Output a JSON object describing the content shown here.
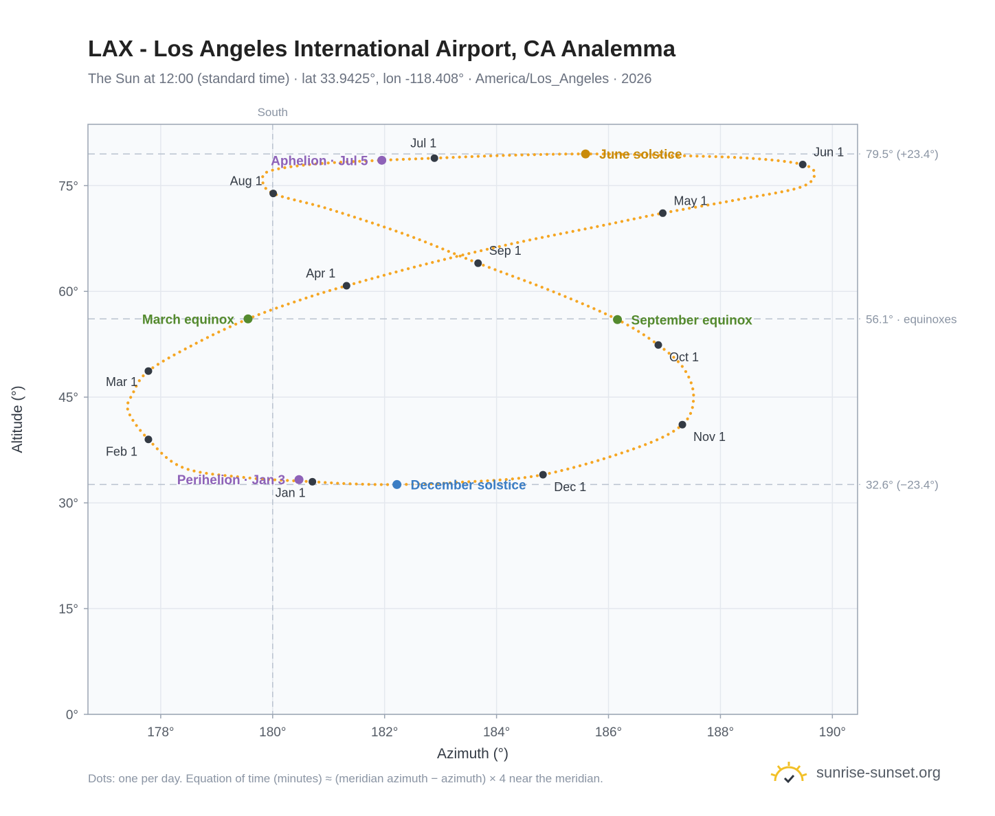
{
  "header": {
    "title": "LAX - Los Angeles International Airport, CA Analemma",
    "subtitle": "The Sun at 12:00 (standard time) · lat 33.9425°, lon -118.408° · America/Los_Angeles · 2026"
  },
  "footer": {
    "note": "Dots: one per day. Equation of time (minutes) ≈ (meridian azimuth − azimuth) × 4 near the meridian.",
    "brand": "sunrise-sunset.org"
  },
  "colors": {
    "path": "#f5a623",
    "month_marker": "#333a44",
    "solstice_june": "#c98b0a",
    "equinox": "#548a2e",
    "solstice_december": "#3b7dc4",
    "apsis": "#8e62b8",
    "grid": "#e4e8ee",
    "plot_bg": "#f8fafc"
  },
  "chart_data": {
    "type": "scatter",
    "xlabel": "Azimuth (°)",
    "ylabel": "Altitude (°)",
    "xlim": [
      176.7,
      190.45
    ],
    "ylim": [
      0,
      83.7
    ],
    "x_ticks": [
      178,
      180,
      182,
      184,
      186,
      188,
      190
    ],
    "x_tick_labels": [
      "178°",
      "180°",
      "182°",
      "184°",
      "186°",
      "188°",
      "190°"
    ],
    "y_ticks": [
      0,
      15,
      30,
      45,
      60,
      75
    ],
    "y_tick_labels": [
      "0°",
      "15°",
      "30°",
      "45°",
      "60°",
      "75°"
    ],
    "grid": true,
    "meridian": {
      "azimuth": 180,
      "label": "South"
    },
    "reference_lines": [
      {
        "altitude": 79.5,
        "label": "79.5° (+23.4°)"
      },
      {
        "altitude": 56.1,
        "label": "56.1° · equinoxes"
      },
      {
        "altitude": 32.6,
        "label": "32.6° (−23.4°)"
      }
    ],
    "daily_path": {
      "name": "",
      "points": [
        [
          180.71,
          33.0
        ],
        [
          179.5,
          33.6
        ],
        [
          178.4,
          35.0
        ],
        [
          177.78,
          39.0
        ],
        [
          177.42,
          43.0
        ],
        [
          177.5,
          45.5
        ],
        [
          177.78,
          48.7
        ],
        [
          178.6,
          52.5
        ],
        [
          179.56,
          56.1
        ],
        [
          180.5,
          58.8
        ],
        [
          181.32,
          60.8
        ],
        [
          182.8,
          64.0
        ],
        [
          184.3,
          66.8
        ],
        [
          185.8,
          69.2
        ],
        [
          186.97,
          71.1
        ],
        [
          188.3,
          73.0
        ],
        [
          189.4,
          74.7
        ],
        [
          189.68,
          76.5
        ],
        [
          189.47,
          78.0
        ],
        [
          188.5,
          78.9
        ],
        [
          187.0,
          79.3
        ],
        [
          185.59,
          79.5
        ],
        [
          184.2,
          79.3
        ],
        [
          182.89,
          78.9
        ],
        [
          181.95,
          78.6
        ],
        [
          180.8,
          78.1
        ],
        [
          180.0,
          77.2
        ],
        [
          179.82,
          76.0
        ],
        [
          180.01,
          73.9
        ],
        [
          181.0,
          71.7
        ],
        [
          182.4,
          68.0
        ],
        [
          183.67,
          64.0
        ],
        [
          185.0,
          60.0
        ],
        [
          186.16,
          56.0
        ],
        [
          186.89,
          52.4
        ],
        [
          187.35,
          49.0
        ],
        [
          187.52,
          45.0
        ],
        [
          187.32,
          41.1
        ],
        [
          186.5,
          37.8
        ],
        [
          184.83,
          34.0
        ],
        [
          183.3,
          32.9
        ],
        [
          182.22,
          32.6
        ],
        [
          181.4,
          32.7
        ],
        [
          180.71,
          33.0
        ]
      ]
    },
    "month_markers": [
      {
        "label": "Jan 1",
        "x": 180.71,
        "y": 33.0
      },
      {
        "label": "Feb 1",
        "x": 177.78,
        "y": 39.0
      },
      {
        "label": "Mar 1",
        "x": 177.78,
        "y": 48.7
      },
      {
        "label": "Apr 1",
        "x": 181.32,
        "y": 60.8
      },
      {
        "label": "May 1",
        "x": 186.97,
        "y": 71.1
      },
      {
        "label": "Jun 1",
        "x": 189.47,
        "y": 78.0
      },
      {
        "label": "Jul 1",
        "x": 182.89,
        "y": 78.9
      },
      {
        "label": "Aug 1",
        "x": 180.01,
        "y": 73.9
      },
      {
        "label": "Sep 1",
        "x": 183.67,
        "y": 64.0
      },
      {
        "label": "Oct 1",
        "x": 186.89,
        "y": 52.4
      },
      {
        "label": "Nov 1",
        "x": 187.32,
        "y": 41.1
      },
      {
        "label": "Dec 1",
        "x": 184.83,
        "y": 34.0
      }
    ],
    "events": [
      {
        "label": "June solstice",
        "x": 185.59,
        "y": 79.5,
        "color": "#c98b0a",
        "align": "start"
      },
      {
        "label": "March equinox",
        "x": 179.56,
        "y": 56.1,
        "color": "#548a2e",
        "align": "end"
      },
      {
        "label": "September equinox",
        "x": 186.16,
        "y": 56.0,
        "color": "#548a2e",
        "align": "start"
      },
      {
        "label": "December solstice",
        "x": 182.22,
        "y": 32.6,
        "color": "#3b7dc4",
        "align": "start"
      },
      {
        "label": "Aphelion · Jul 5",
        "x": 181.95,
        "y": 78.6,
        "color": "#8e62b8",
        "align": "end"
      },
      {
        "label": "Perihelion · Jan 3",
        "x": 180.47,
        "y": 33.3,
        "color": "#8e62b8",
        "align": "end"
      }
    ]
  }
}
